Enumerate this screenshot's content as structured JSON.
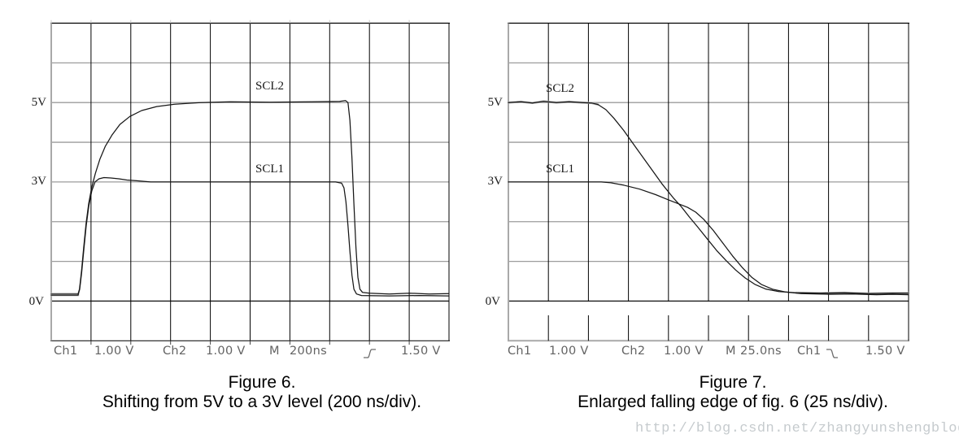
{
  "figures": [
    {
      "name": "Figure 6",
      "axis_labels": {
        "v5": "5V",
        "v3": "3V",
        "v0": "0V"
      },
      "trace_labels": {
        "scl2": "SCL2",
        "scl1": "SCL1"
      },
      "status": {
        "ch1_label": "Ch1",
        "ch1_scale": "1.00 V",
        "ch2_label": "Ch2",
        "ch2_scale": "1.00 V",
        "timebase_label": "M",
        "timebase": "200ns",
        "trigger_icon": "rising-edge",
        "trigger_level": "1.50 V"
      },
      "caption": {
        "line1": "Figure 6.",
        "line2": "Shifting from 5V to a 3V level (200 ns/div)."
      }
    },
    {
      "name": "Figure 7",
      "axis_labels": {
        "v5": "5V",
        "v3": "3V",
        "v0": "0V"
      },
      "trace_labels": {
        "scl2": "SCL2",
        "scl1": "SCL1"
      },
      "status": {
        "ch1_label": "Ch1",
        "ch1_scale": "1.00 V",
        "ch2_label": "Ch2",
        "ch2_scale": "1.00 V",
        "timebase_label": "M",
        "timebase": "25.0ns",
        "trigger_source": "Ch1",
        "trigger_icon": "falling-edge",
        "trigger_level": "1.50 V"
      },
      "caption": {
        "line1": "Figure 7.",
        "line2": "Enlarged falling edge of fig. 6 (25 ns/div)."
      }
    }
  ],
  "watermark": "http://blog.csdn.net/zhangyunshengblog",
  "colors": {
    "trace": "#161616",
    "grid_horizontal": "#9c9c9c",
    "grid_vertical": "#000000",
    "grid_frame_gray": "#a9a9a9",
    "zero_line": "#1a1a1a",
    "status_text": "#636363",
    "watermark": "#c6cbce"
  },
  "chart_data": [
    {
      "type": "line",
      "title": "Figure 6.",
      "subtitle": "Shifting from 5V to a 3V level (200 ns/div).",
      "x_unit": "ns",
      "y_unit": "V",
      "time_per_div_ns": 200,
      "volts_per_div": 1,
      "x_range": [
        0,
        2000
      ],
      "y_range": [
        -1,
        7
      ],
      "grid": "10x8 divisions, horizontal gray / vertical black",
      "legend_position": "inline-labels",
      "series": [
        {
          "name": "SCL2",
          "points": [
            [
              0,
              0.18
            ],
            [
              135,
              0.18
            ],
            [
              142,
              0.3
            ],
            [
              152,
              0.75
            ],
            [
              163,
              1.35
            ],
            [
              175,
              1.95
            ],
            [
              188,
              2.45
            ],
            [
              203,
              2.85
            ],
            [
              222,
              3.22
            ],
            [
              245,
              3.58
            ],
            [
              272,
              3.9
            ],
            [
              305,
              4.18
            ],
            [
              345,
              4.45
            ],
            [
              395,
              4.65
            ],
            [
              455,
              4.8
            ],
            [
              530,
              4.9
            ],
            [
              620,
              4.96
            ],
            [
              750,
              5.0
            ],
            [
              900,
              5.02
            ],
            [
              1100,
              5.01
            ],
            [
              1300,
              5.02
            ],
            [
              1450,
              5.03
            ],
            [
              1480,
              5.05
            ],
            [
              1492,
              5.0
            ],
            [
              1502,
              4.55
            ],
            [
              1512,
              3.6
            ],
            [
              1522,
              2.45
            ],
            [
              1532,
              1.35
            ],
            [
              1542,
              0.6
            ],
            [
              1552,
              0.3
            ],
            [
              1565,
              0.22
            ],
            [
              1600,
              0.2
            ],
            [
              1700,
              0.18
            ],
            [
              1800,
              0.2
            ],
            [
              1900,
              0.18
            ],
            [
              2000,
              0.19
            ]
          ]
        },
        {
          "name": "SCL1",
          "points": [
            [
              0,
              0.15
            ],
            [
              135,
              0.15
            ],
            [
              143,
              0.3
            ],
            [
              153,
              0.72
            ],
            [
              164,
              1.3
            ],
            [
              176,
              1.9
            ],
            [
              189,
              2.4
            ],
            [
              204,
              2.78
            ],
            [
              220,
              3.0
            ],
            [
              240,
              3.08
            ],
            [
              265,
              3.11
            ],
            [
              300,
              3.1
            ],
            [
              340,
              3.08
            ],
            [
              380,
              3.05
            ],
            [
              430,
              3.03
            ],
            [
              500,
              3.0
            ],
            [
              700,
              3.0
            ],
            [
              1000,
              3.0
            ],
            [
              1430,
              3.0
            ],
            [
              1460,
              2.97
            ],
            [
              1472,
              2.85
            ],
            [
              1482,
              2.5
            ],
            [
              1492,
              1.9
            ],
            [
              1502,
              1.25
            ],
            [
              1512,
              0.65
            ],
            [
              1522,
              0.3
            ],
            [
              1535,
              0.18
            ],
            [
              1560,
              0.14
            ],
            [
              1700,
              0.13
            ],
            [
              1850,
              0.14
            ],
            [
              2000,
              0.13
            ]
          ]
        }
      ]
    },
    {
      "type": "line",
      "title": "Figure 7.",
      "subtitle": "Enlarged falling edge of fig. 6 (25 ns/div).",
      "x_unit": "ns",
      "y_unit": "V",
      "time_per_div_ns": 25,
      "volts_per_div": 1,
      "x_range": [
        0,
        250
      ],
      "y_range": [
        -1,
        7
      ],
      "grid": "10x8 divisions, horizontal gray / vertical black",
      "legend_position": "inline-labels",
      "series": [
        {
          "name": "SCL2",
          "points": [
            [
              0,
              5.0
            ],
            [
              8,
              5.02
            ],
            [
              15,
              4.99
            ],
            [
              22,
              5.03
            ],
            [
              30,
              5.0
            ],
            [
              38,
              5.02
            ],
            [
              46,
              5.0
            ],
            [
              52,
              4.99
            ],
            [
              56,
              4.95
            ],
            [
              61,
              4.82
            ],
            [
              66,
              4.6
            ],
            [
              72,
              4.3
            ],
            [
              80,
              3.85
            ],
            [
              88,
              3.4
            ],
            [
              96,
              2.95
            ],
            [
              103,
              2.6
            ],
            [
              108,
              2.38
            ],
            [
              113,
              2.12
            ],
            [
              118,
              1.88
            ],
            [
              124,
              1.58
            ],
            [
              130,
              1.28
            ],
            [
              136,
              1.02
            ],
            [
              142,
              0.78
            ],
            [
              148,
              0.58
            ],
            [
              154,
              0.42
            ],
            [
              161,
              0.3
            ],
            [
              169,
              0.24
            ],
            [
              180,
              0.21
            ],
            [
              195,
              0.2
            ],
            [
              210,
              0.21
            ],
            [
              225,
              0.19
            ],
            [
              240,
              0.2
            ],
            [
              250,
              0.2
            ]
          ]
        },
        {
          "name": "SCL1",
          "points": [
            [
              0,
              3.0
            ],
            [
              30,
              3.0
            ],
            [
              58,
              3.0
            ],
            [
              64,
              2.98
            ],
            [
              72,
              2.92
            ],
            [
              82,
              2.82
            ],
            [
              92,
              2.68
            ],
            [
              100,
              2.55
            ],
            [
              107,
              2.44
            ],
            [
              112,
              2.36
            ],
            [
              117,
              2.24
            ],
            [
              122,
              2.06
            ],
            [
              128,
              1.78
            ],
            [
              134,
              1.46
            ],
            [
              140,
              1.14
            ],
            [
              146,
              0.85
            ],
            [
              152,
              0.6
            ],
            [
              158,
              0.42
            ],
            [
              165,
              0.3
            ],
            [
              173,
              0.23
            ],
            [
              183,
              0.19
            ],
            [
              200,
              0.17
            ],
            [
              215,
              0.18
            ],
            [
              230,
              0.16
            ],
            [
              240,
              0.17
            ],
            [
              250,
              0.16
            ]
          ]
        }
      ]
    }
  ]
}
